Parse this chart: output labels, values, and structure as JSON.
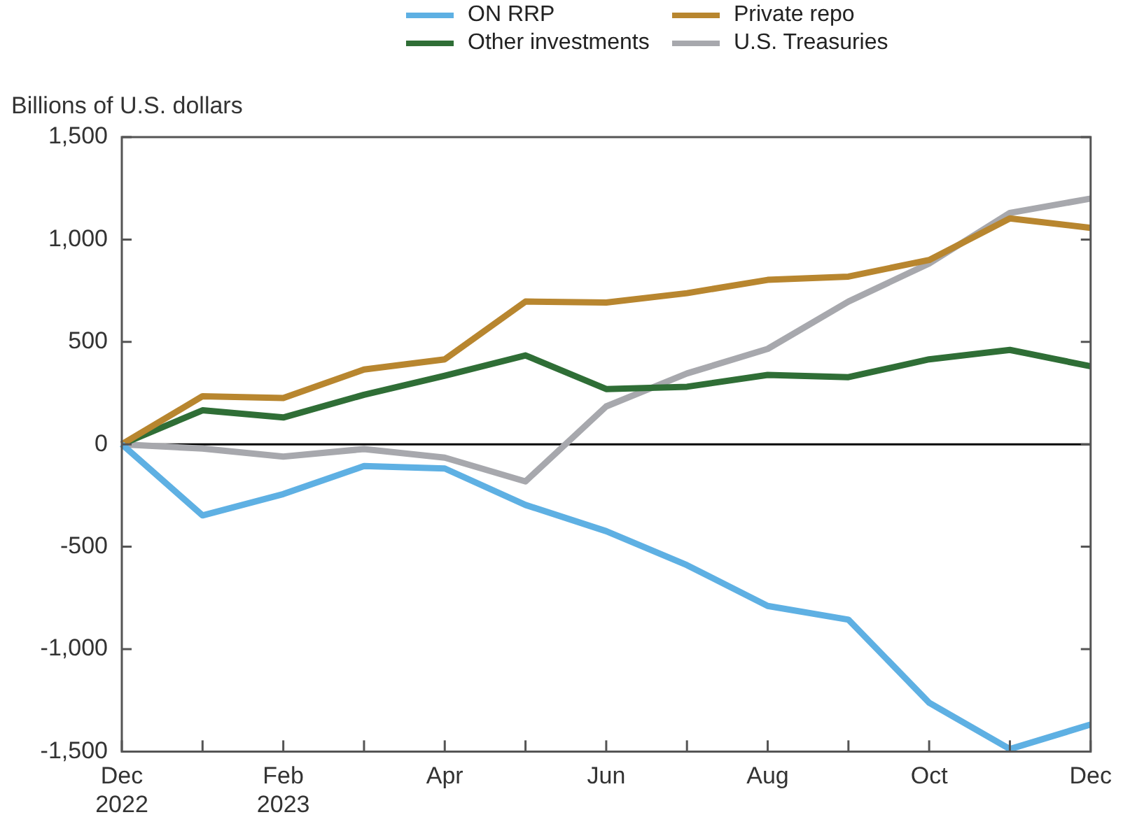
{
  "chart_data": {
    "type": "line",
    "ylabel": "Billions of U.S. dollars",
    "categories": [
      "Dec\n2022",
      null,
      "Feb\n2023",
      null,
      "Apr",
      null,
      "Jun",
      null,
      "Aug",
      null,
      "Oct",
      null,
      "Dec"
    ],
    "series": [
      {
        "name": "ON RRP",
        "color": "#5eb0e3",
        "values": [
          0,
          -347,
          -243,
          -106,
          -118,
          -296,
          -424,
          -590,
          -789,
          -856,
          -1262,
          -1488,
          -1368
        ]
      },
      {
        "name": "Private repo",
        "color": "#b8862f",
        "values": [
          0,
          235,
          226,
          365,
          415,
          697,
          692,
          738,
          803,
          819,
          900,
          1103,
          1057
        ]
      },
      {
        "name": "Other investments",
        "color": "#2f6e36",
        "values": [
          0,
          166,
          131,
          242,
          335,
          434,
          270,
          281,
          339,
          328,
          415,
          461,
          381
        ]
      },
      {
        "name": "U.S. Treasuries",
        "color": "#a7a8ad",
        "values": [
          0,
          -21,
          -60,
          -23,
          -65,
          -181,
          185,
          346,
          466,
          697,
          883,
          1130,
          1200
        ]
      }
    ],
    "ylim": [
      -1500,
      1500
    ],
    "yticks": [
      {
        "value": -1500,
        "label": "-1,500"
      },
      {
        "value": -1000,
        "label": "-1,000"
      },
      -500,
      0,
      500,
      {
        "value": 1000,
        "label": "1,000"
      },
      {
        "value": 1500,
        "label": "1,500"
      }
    ],
    "ref_lines": [
      {
        "axis": "y",
        "value": 0,
        "color": "#000000"
      }
    ],
    "legend": "top",
    "marker": "none",
    "line_style": "solid"
  }
}
